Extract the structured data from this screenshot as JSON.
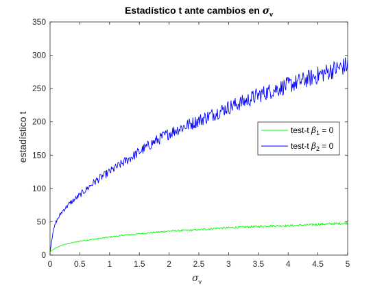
{
  "chart_data": {
    "type": "line",
    "title_text": "Estadístico t ante cambios en ",
    "title_symbol": "σ",
    "title_subscript": "v",
    "xlabel_symbol": "σ",
    "xlabel_subscript": "v",
    "ylabel": "estadístico t",
    "xlim": [
      0,
      5
    ],
    "ylim": [
      0,
      350
    ],
    "xticks": [
      0,
      0.5,
      1,
      1.5,
      2,
      2.5,
      3,
      3.5,
      4,
      4.5,
      5
    ],
    "xtick_labels": [
      "0",
      "0.5",
      "1",
      "1.5",
      "2",
      "2.5",
      "3",
      "3.5",
      "4",
      "4.5",
      "5"
    ],
    "yticks": [
      0,
      50,
      100,
      150,
      200,
      250,
      300,
      350
    ],
    "ytick_labels": [
      "0",
      "50",
      "100",
      "150",
      "200",
      "250",
      "300",
      "350"
    ],
    "grid": false,
    "legend_position": "right",
    "series": [
      {
        "label_prefix": "test-t ",
        "label_symbol": "β",
        "label_subscript": "1",
        "label_suffix": " = 0",
        "color": "#00ff00",
        "x": [
          0,
          0.1,
          0.2,
          0.3,
          0.5,
          0.75,
          1,
          1.25,
          1.5,
          1.75,
          2,
          2.25,
          2.5,
          2.75,
          3,
          3.25,
          3.5,
          3.75,
          4,
          4.25,
          4.5,
          4.75,
          5
        ],
        "y": [
          5,
          11,
          15,
          17,
          21,
          24,
          27,
          30,
          32,
          34,
          36,
          37,
          38,
          40,
          41,
          42,
          43,
          44,
          44,
          45,
          46,
          47,
          48
        ]
      },
      {
        "label_prefix": "test-t ",
        "label_symbol": "β",
        "label_subscript": "2",
        "label_suffix": " = 0",
        "color": "#0000ff",
        "x": [
          0,
          0.05,
          0.1,
          0.2,
          0.3,
          0.5,
          0.75,
          1,
          1.25,
          1.5,
          1.75,
          2,
          2.25,
          2.5,
          2.75,
          3,
          3.25,
          3.5,
          3.75,
          4,
          4.25,
          4.5,
          4.75,
          5
        ],
        "y": [
          5,
          35,
          50,
          65,
          75,
          90,
          110,
          125,
          140,
          155,
          170,
          183,
          193,
          202,
          212,
          222,
          230,
          240,
          248,
          255,
          262,
          270,
          278,
          285
        ]
      }
    ]
  }
}
